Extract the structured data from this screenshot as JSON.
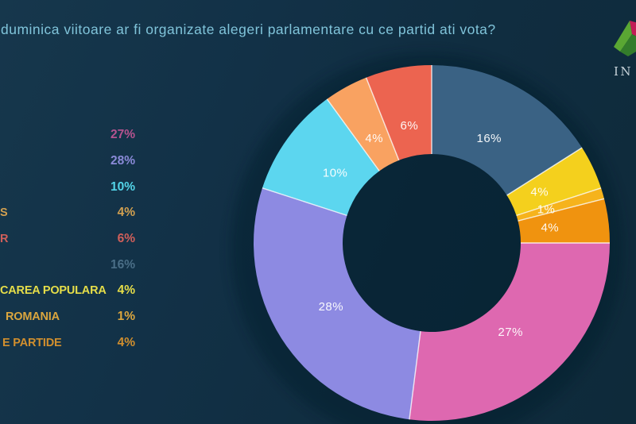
{
  "title": {
    "text": "duminica viitoare ar fi organizate alegeri parlamentare cu ce partid ati vota?",
    "color": "#80c4da"
  },
  "logo": {
    "wordmark": "IN",
    "gem_colors": {
      "crimson": "#c11d56",
      "green": "#5aa733",
      "dark_green": "#337c2b"
    }
  },
  "legend": {
    "rows": [
      {
        "label_fragment": "",
        "percent": "27%",
        "color": "#b5538f"
      },
      {
        "label_fragment": "",
        "percent": "28%",
        "color": "#8a8ad8"
      },
      {
        "label_fragment": "",
        "percent": "10%",
        "color": "#53d4e8"
      },
      {
        "label_fragment": "S",
        "percent": "4%",
        "color": "#d2a050"
      },
      {
        "label_fragment": "R",
        "percent": "6%",
        "color": "#d05f5a"
      },
      {
        "label_fragment": "",
        "percent": "16%",
        "color": "#4a6e87"
      },
      {
        "label_fragment": "CAREA POPULARA",
        "percent": "4%",
        "color": "#e6de49"
      },
      {
        "label_fragment": "ROMANIA",
        "percent": "1%",
        "color": "#dba63e"
      },
      {
        "label_fragment": "E PARTIDE",
        "percent": "4%",
        "color": "#d18f2e"
      }
    ]
  },
  "chart_data": {
    "type": "pie",
    "subtype": "donut",
    "title": "duminica viitoare ar fi organizate alegeri parlamentare cu ce partid ati vota?",
    "unit": "%",
    "start": "top",
    "direction": "clockwise",
    "inner_radius_ratio": 0.5,
    "total": 100,
    "slice_label_color": "#ffffff",
    "separator_color": "#ffffff",
    "slices": [
      {
        "label": "16%",
        "value": 16,
        "color": "#3a6284"
      },
      {
        "label": "4%",
        "value": 4,
        "color": "#f4d01d"
      },
      {
        "label": "1%",
        "value": 1,
        "color": "#f6b31c"
      },
      {
        "label": "4%",
        "value": 4,
        "color": "#f0930f"
      },
      {
        "label": "27%",
        "value": 27,
        "color": "#de68b0"
      },
      {
        "label": "28%",
        "value": 28,
        "color": "#8d8ae2"
      },
      {
        "label": "10%",
        "value": 10,
        "color": "#5cd6ef"
      },
      {
        "label": "4%",
        "value": 4,
        "color": "#f9a261"
      },
      {
        "label": "6%",
        "value": 6,
        "color": "#ec6450"
      }
    ]
  }
}
